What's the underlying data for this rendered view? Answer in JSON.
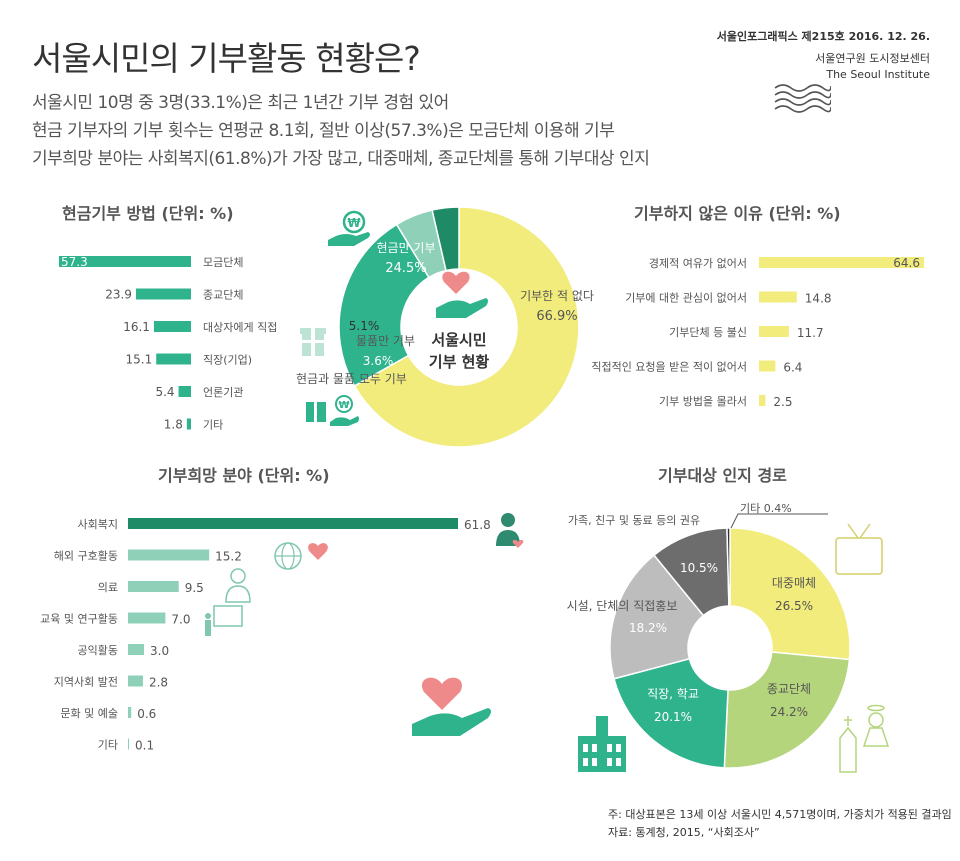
{
  "header": {
    "title": "서울시민의 기부활동 현황은?",
    "subtitle_lines": [
      "서울시민 10명 중 3명(33.1%)은 최근 1년간 기부 경험 있어",
      "현금 기부자의 기부 횟수는 연평균 8.1회, 절반 이상(57.3%)은 모금단체 이용해 기부",
      "기부희망 분야는 사회복지(61.8%)가 가장 많고, 대중매체, 종교단체를 통해 기부대상 인지"
    ],
    "issue": "서울인포그래픽스 제215호 2016. 12. 26.",
    "org_kr": "서울연구원 도시정보센터",
    "org_en": "The Seoul Institute"
  },
  "colors": {
    "teal": "#2fb38c",
    "teal_dark": "#1e8a66",
    "teal_light": "#8fd0b8",
    "yellow": "#f2ec7d",
    "yellow_green": "#b5d57d",
    "gray": "#bdbdbd",
    "dark_gray": "#6d6d6d",
    "pink": "#ef8a8a"
  },
  "center_label": [
    "서울시민",
    "기부 현황"
  ],
  "chart_data": [
    {
      "type": "bar",
      "title": "현금기부 방법 (단위: %)",
      "categories": [
        "모금단체",
        "종교단체",
        "대상자에게 직접",
        "직장(기업)",
        "언론기관",
        "기타"
      ],
      "values": [
        57.3,
        23.9,
        16.1,
        15.1,
        5.4,
        1.8
      ],
      "value_labels": [
        "57.3",
        "23.9",
        "16.1",
        "15.1",
        "5.4",
        "1.8"
      ],
      "orientation": "horizontal",
      "direction": "right-to-left"
    },
    {
      "type": "pie",
      "title": "",
      "categories": [
        "기부한 적 없다",
        "현금만 기부",
        "물품만 기부",
        "현금과 물품 모두 기부"
      ],
      "values": [
        66.9,
        24.5,
        5.1,
        3.6
      ],
      "value_labels": [
        "66.9%",
        "24.5%",
        "5.1%",
        "3.6%"
      ],
      "donut": true
    },
    {
      "type": "bar",
      "title": "기부하지 않은 이유 (단위: %)",
      "categories": [
        "경제적 여유가 없어서",
        "기부에 대한 관심이 없어서",
        "기부단체 등 불신",
        "직접적인 요청을 받은 적이 없어서",
        "기부 방법을 몰라서"
      ],
      "values": [
        64.6,
        14.8,
        11.7,
        6.4,
        2.5
      ],
      "value_labels": [
        "64.6",
        "14.8",
        "11.7",
        "6.4",
        "2.5"
      ],
      "orientation": "horizontal"
    },
    {
      "type": "bar",
      "title": "기부희망 분야 (단위: %)",
      "categories": [
        "사회복지",
        "해외 구호활동",
        "의료",
        "교육 및 연구활동",
        "공익활동",
        "지역사회 발전",
        "문화 및 예술",
        "기타"
      ],
      "values": [
        61.8,
        15.2,
        9.5,
        7.0,
        3.0,
        2.8,
        0.6,
        0.1
      ],
      "value_labels": [
        "61.8",
        "15.2",
        "9.5",
        "7.0",
        "3.0",
        "2.8",
        "0.6",
        "0.1"
      ],
      "orientation": "horizontal"
    },
    {
      "type": "pie",
      "title": "기부대상 인지 경로",
      "categories": [
        "대중매체",
        "종교단체",
        "직장, 학교",
        "시설, 단체의 직접홍보",
        "가족, 친구 및 동료 등의 권유",
        "기타"
      ],
      "values": [
        26.5,
        24.2,
        20.1,
        18.2,
        10.5,
        0.4
      ],
      "value_labels": [
        "26.5%",
        "24.2%",
        "20.1%",
        "18.2%",
        "10.5%",
        "기타 0.4%"
      ],
      "donut": true
    }
  ],
  "footnote": {
    "note": "주: 대상표본은 13세 이상 서울시민 4,571명이며, 가중치가 적용된 결과임",
    "source": "자료: 통계청, 2015, “사회조사”"
  }
}
